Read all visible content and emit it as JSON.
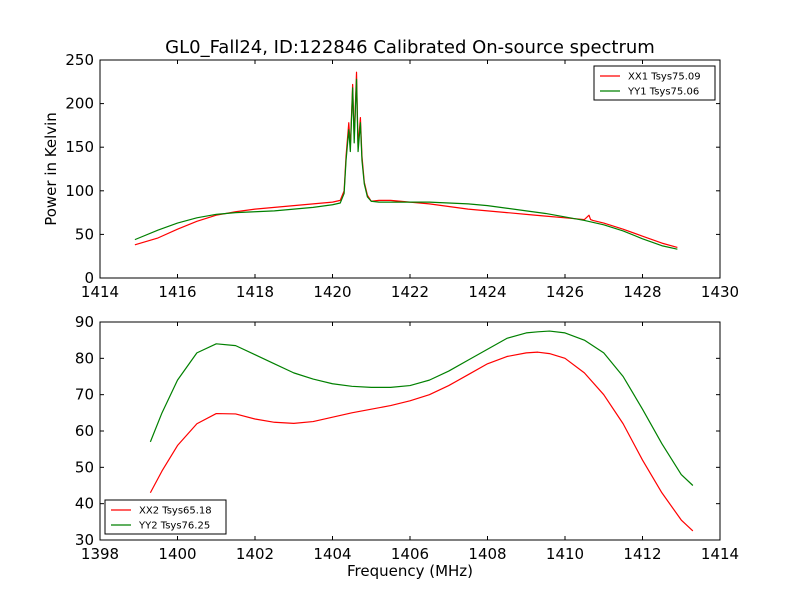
{
  "chart_data": [
    {
      "type": "line",
      "title": "GL0_Fall24, ID:122846 Calibrated On-source spectrum",
      "xlabel": "",
      "ylabel": "Power in Kelvin",
      "xlim": [
        1414,
        1430
      ],
      "ylim": [
        0,
        250
      ],
      "xticks": [
        1414,
        1416,
        1418,
        1420,
        1422,
        1424,
        1426,
        1428,
        1430
      ],
      "yticks": [
        0,
        50,
        100,
        150,
        200,
        250
      ],
      "grid": false,
      "legend_position": "top-right",
      "series": [
        {
          "name": "XX1 Tsys75.09",
          "color": "#ff0000",
          "x": [
            1414.9,
            1415.5,
            1416.0,
            1416.5,
            1417.0,
            1417.5,
            1418.0,
            1418.5,
            1419.0,
            1419.5,
            1420.0,
            1420.2,
            1420.3,
            1420.35,
            1420.42,
            1420.46,
            1420.52,
            1420.56,
            1420.62,
            1420.66,
            1420.72,
            1420.76,
            1420.82,
            1420.9,
            1421.0,
            1421.2,
            1421.5,
            1422.0,
            1422.5,
            1423.0,
            1423.5,
            1424.0,
            1424.5,
            1425.0,
            1425.5,
            1426.0,
            1426.5,
            1426.62,
            1426.66,
            1426.72,
            1427.0,
            1427.5,
            1428.0,
            1428.5,
            1428.9
          ],
          "y": [
            38,
            46,
            56,
            65,
            72,
            76,
            79,
            81,
            83,
            85,
            87,
            89,
            100,
            140,
            178,
            150,
            222,
            160,
            236,
            150,
            184,
            140,
            110,
            95,
            88,
            89,
            89,
            87,
            85,
            82,
            79,
            77,
            75,
            73,
            71,
            69,
            67,
            72,
            67,
            66,
            63,
            56,
            48,
            40,
            35
          ]
        },
        {
          "name": "YY1 Tsys75.06",
          "color": "#008000",
          "x": [
            1414.9,
            1415.5,
            1416.0,
            1416.5,
            1417.0,
            1417.5,
            1418.0,
            1418.5,
            1419.0,
            1419.5,
            1420.0,
            1420.2,
            1420.3,
            1420.35,
            1420.42,
            1420.46,
            1420.52,
            1420.56,
            1420.62,
            1420.66,
            1420.72,
            1420.76,
            1420.82,
            1420.9,
            1421.0,
            1421.2,
            1421.5,
            1422.0,
            1422.5,
            1423.0,
            1423.5,
            1424.0,
            1424.5,
            1425.0,
            1425.5,
            1426.0,
            1426.5,
            1427.0,
            1427.5,
            1428.0,
            1428.5,
            1428.9
          ],
          "y": [
            44,
            55,
            63,
            69,
            73,
            75,
            76,
            77,
            79,
            81,
            84,
            86,
            97,
            135,
            170,
            145,
            218,
            155,
            228,
            145,
            178,
            135,
            108,
            93,
            88,
            87,
            87,
            87,
            87,
            86,
            85,
            83,
            80,
            77,
            74,
            70,
            66,
            61,
            54,
            45,
            37,
            33
          ]
        }
      ]
    },
    {
      "type": "line",
      "title": "",
      "xlabel": "Frequency (MHz)",
      "ylabel": "",
      "xlim": [
        1398,
        1414
      ],
      "ylim": [
        30,
        90
      ],
      "xticks": [
        1398,
        1400,
        1402,
        1404,
        1406,
        1408,
        1410,
        1412,
        1414
      ],
      "yticks": [
        30,
        40,
        50,
        60,
        70,
        80,
        90
      ],
      "grid": false,
      "legend_position": "bottom-left",
      "series": [
        {
          "name": "XX2 Tsys65.18",
          "color": "#ff0000",
          "x": [
            1399.3,
            1399.6,
            1400.0,
            1400.5,
            1401.0,
            1401.5,
            1402.0,
            1402.5,
            1403.0,
            1403.5,
            1404.0,
            1404.5,
            1405.0,
            1405.5,
            1406.0,
            1406.5,
            1407.0,
            1407.5,
            1408.0,
            1408.5,
            1409.0,
            1409.3,
            1409.6,
            1410.0,
            1410.5,
            1411.0,
            1411.5,
            1412.0,
            1412.5,
            1413.0,
            1413.3
          ],
          "y": [
            43,
            49,
            56,
            62,
            64.8,
            64.7,
            63.3,
            62.4,
            62.1,
            62.6,
            63.8,
            65.0,
            66.0,
            67.0,
            68.3,
            70.0,
            72.5,
            75.5,
            78.5,
            80.5,
            81.5,
            81.7,
            81.3,
            80.0,
            76.0,
            70.0,
            62.0,
            52.0,
            43.0,
            35.5,
            32.5
          ]
        },
        {
          "name": "YY2 Tsys76.25",
          "color": "#008000",
          "x": [
            1399.3,
            1399.6,
            1400.0,
            1400.5,
            1401.0,
            1401.5,
            1402.0,
            1402.5,
            1403.0,
            1403.5,
            1404.0,
            1404.5,
            1405.0,
            1405.5,
            1406.0,
            1406.5,
            1407.0,
            1407.5,
            1408.0,
            1408.5,
            1409.0,
            1409.3,
            1409.6,
            1410.0,
            1410.5,
            1411.0,
            1411.5,
            1412.0,
            1412.5,
            1413.0,
            1413.3
          ],
          "y": [
            57,
            65,
            74,
            81.5,
            84.0,
            83.5,
            81.0,
            78.5,
            76.0,
            74.3,
            73.0,
            72.3,
            72.0,
            72.0,
            72.5,
            74.0,
            76.5,
            79.5,
            82.5,
            85.5,
            87.0,
            87.3,
            87.5,
            87.0,
            85.0,
            81.5,
            75.0,
            66.0,
            56.5,
            48.0,
            45.0
          ]
        }
      ]
    }
  ]
}
